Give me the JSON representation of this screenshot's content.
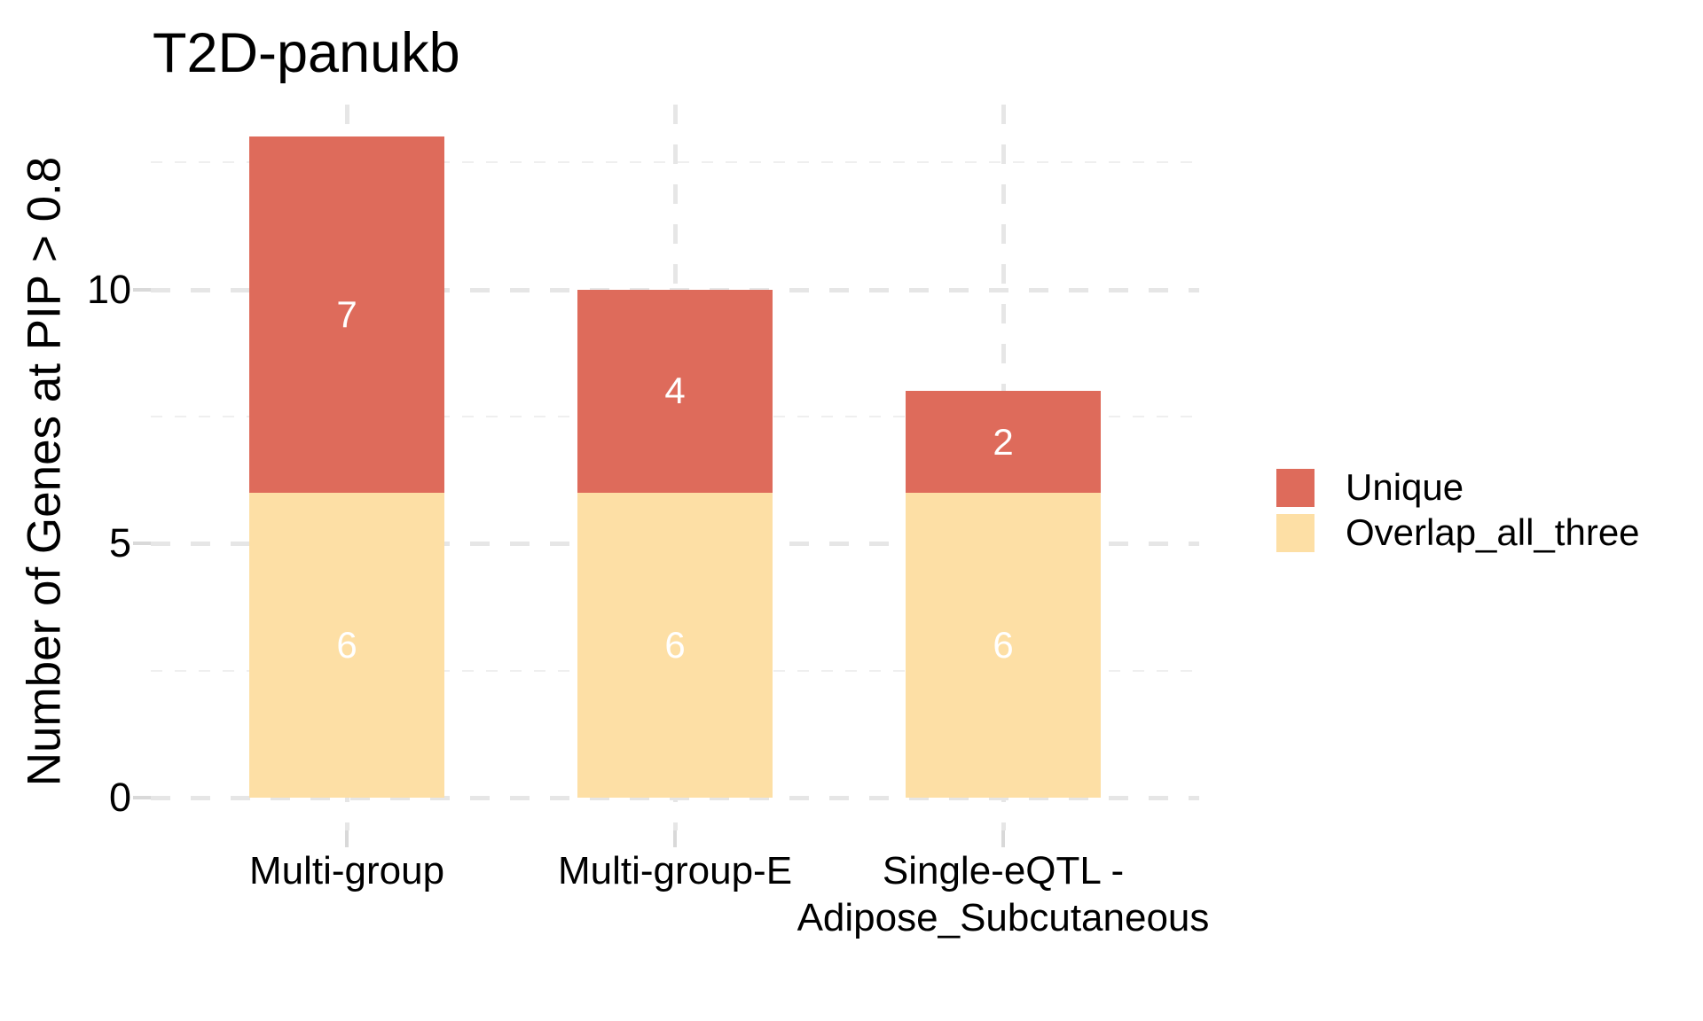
{
  "chart_data": {
    "type": "bar",
    "stacked": true,
    "title": "T2D-panukb",
    "ylabel": "Number of Genes at PIP > 0.8",
    "xlabel": "",
    "categories": [
      "Multi-group",
      "Multi-group-E",
      "Single-eQTL -\nAdipose_Subcutaneous"
    ],
    "series": [
      {
        "name": "Overlap_all_three",
        "color": "#FDDFA5",
        "values": [
          6,
          6,
          6
        ]
      },
      {
        "name": "Unique",
        "color": "#DE6B5B",
        "values": [
          7,
          4,
          2
        ]
      }
    ],
    "totals": [
      13,
      10,
      8
    ],
    "bar_label_color": "#FFFFFF",
    "yticks": [
      0,
      5,
      10
    ],
    "minor_yticks": [
      2.5,
      7.5,
      12.5
    ],
    "ylim": [
      0,
      13.65
    ],
    "grid": "dashed",
    "grid_major_color": "#E6E6E6",
    "grid_minor_color": "#EFEFEF",
    "tick_mark_color": "#D9D9D9",
    "legend_position": "right",
    "legend_entries": [
      {
        "label": "Unique",
        "color": "#DE6B5B"
      },
      {
        "label": "Overlap_all_three",
        "color": "#FDDFA5"
      }
    ]
  }
}
